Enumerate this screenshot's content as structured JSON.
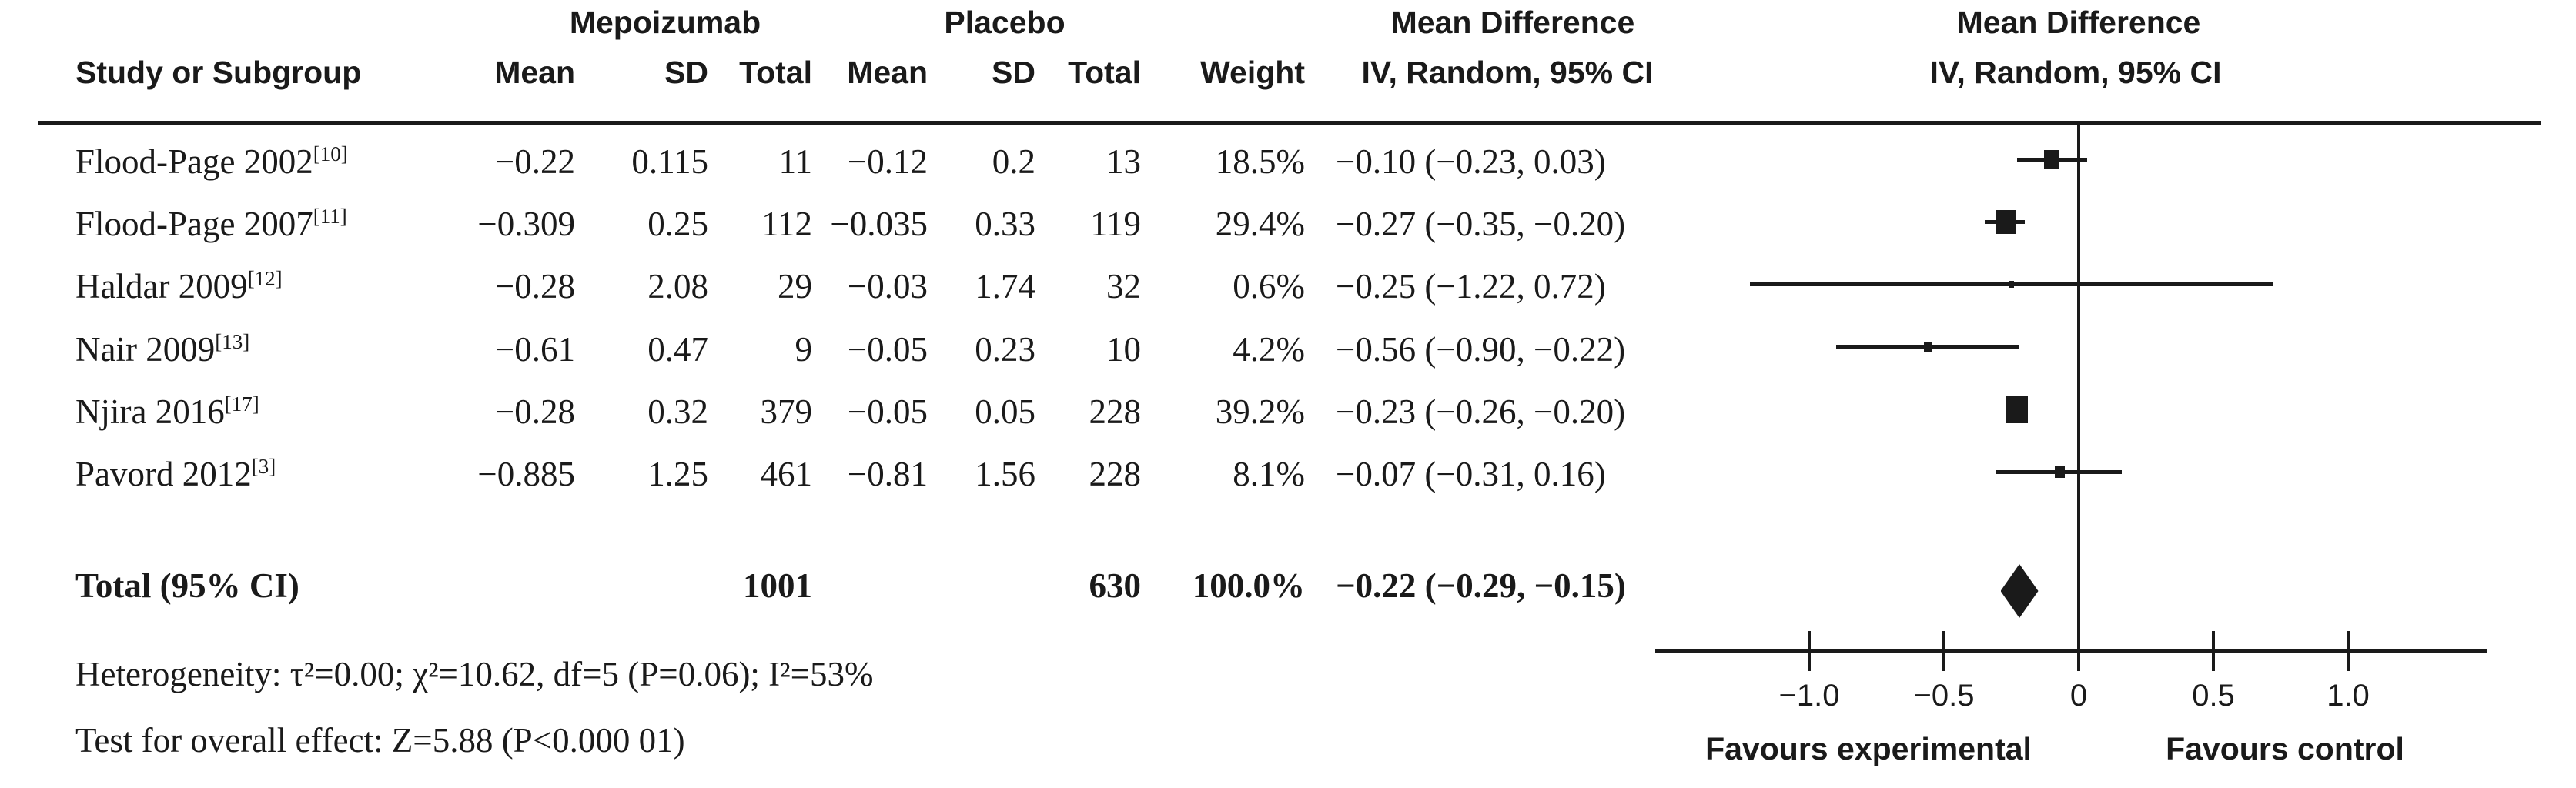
{
  "header": {
    "study_col": "Study or Subgroup",
    "treatment_group": "Mepoizumab",
    "control_group": "Placebo",
    "sub_cols": {
      "mean1": "Mean",
      "sd1": "SD",
      "total1": "Total",
      "mean2": "Mean",
      "sd2": "SD",
      "total2": "Total",
      "weight": "Weight"
    },
    "md_text": {
      "line1": "Mean Difference",
      "line2": "IV, Random, 95% CI"
    },
    "md_plot": {
      "line1": "Mean Difference",
      "line2": "IV, Random, 95% CI"
    }
  },
  "rows": [
    {
      "study": "Flood-Page 2002",
      "ref": "[10]",
      "mean1": "−0.22",
      "sd1": "0.115",
      "total1": "11",
      "mean2": "−0.12",
      "sd2": "0.2",
      "total2": "13",
      "weight": "18.5%",
      "ci": "−0.10 (−0.23, 0.03)"
    },
    {
      "study": "Flood-Page 2007",
      "ref": "[11]",
      "mean1": "−0.309",
      "sd1": "0.25",
      "total1": "112",
      "mean2": "−0.035",
      "sd2": "0.33",
      "total2": "119",
      "weight": "29.4%",
      "ci": "−0.27 (−0.35, −0.20)"
    },
    {
      "study": "Haldar 2009",
      "ref": "[12]",
      "mean1": "−0.28",
      "sd1": "2.08",
      "total1": "29",
      "mean2": "−0.03",
      "sd2": "1.74",
      "total2": "32",
      "weight": "0.6%",
      "ci": "−0.25 (−1.22, 0.72)"
    },
    {
      "study": "Nair 2009",
      "ref": "[13]",
      "mean1": "−0.61",
      "sd1": "0.47",
      "total1": "9",
      "mean2": "−0.05",
      "sd2": "0.23",
      "total2": "10",
      "weight": "4.2%",
      "ci": "−0.56 (−0.90, −0.22)"
    },
    {
      "study": "Njira 2016",
      "ref": "[17]",
      "mean1": "−0.28",
      "sd1": "0.32",
      "total1": "379",
      "mean2": "−0.05",
      "sd2": "0.05",
      "total2": "228",
      "weight": "39.2%",
      "ci": "−0.23 (−0.26, −0.20)"
    },
    {
      "study": "Pavord 2012",
      "ref": "[3]",
      "mean1": "−0.885",
      "sd1": "1.25",
      "total1": "461",
      "mean2": "−0.81",
      "sd2": "1.56",
      "total2": "228",
      "weight": "8.1%",
      "ci": "−0.07 (−0.31, 0.16)"
    }
  ],
  "total": {
    "label": "Total (95% CI)",
    "total1": "1001",
    "total2": "630",
    "weight": "100.0%",
    "ci": "−0.22 (−0.29, −0.15)"
  },
  "footnotes": {
    "heterogeneity": "Heterogeneity: τ²=0.00; χ²=10.62, df=5 (P=0.06); I²=53%",
    "overall_effect": "Test for overall effect: Z=5.88 (P<0.000 01)"
  },
  "chart_data": {
    "type": "forest",
    "effect_measure": "Mean Difference, IV, Random, 95% CI",
    "x_ticks": [
      -1.0,
      -0.5,
      0,
      0.5,
      1.0
    ],
    "x_tick_labels": [
      "−1.0",
      "−0.5",
      "0",
      "0.5",
      "1.0"
    ],
    "x_range": [
      -1.57,
      1.51
    ],
    "zero_line": 0,
    "studies": [
      {
        "name": "Flood-Page 2002",
        "est": -0.1,
        "lo": -0.23,
        "hi": 0.03,
        "weight": 18.5
      },
      {
        "name": "Flood-Page 2007",
        "est": -0.27,
        "lo": -0.35,
        "hi": -0.2,
        "weight": 29.4
      },
      {
        "name": "Haldar 2009",
        "est": -0.25,
        "lo": -1.22,
        "hi": 0.72,
        "weight": 0.6
      },
      {
        "name": "Nair 2009",
        "est": -0.56,
        "lo": -0.9,
        "hi": -0.22,
        "weight": 4.2
      },
      {
        "name": "Njira 2016",
        "est": -0.23,
        "lo": -0.26,
        "hi": -0.2,
        "weight": 39.2
      },
      {
        "name": "Pavord 2012",
        "est": -0.07,
        "lo": -0.31,
        "hi": 0.16,
        "weight": 8.1
      }
    ],
    "total": {
      "est": -0.22,
      "lo": -0.29,
      "hi": -0.15
    },
    "favours_left": "Favours experimental",
    "favours_right": "Favours control",
    "marker_color": "#1a1a1a"
  }
}
